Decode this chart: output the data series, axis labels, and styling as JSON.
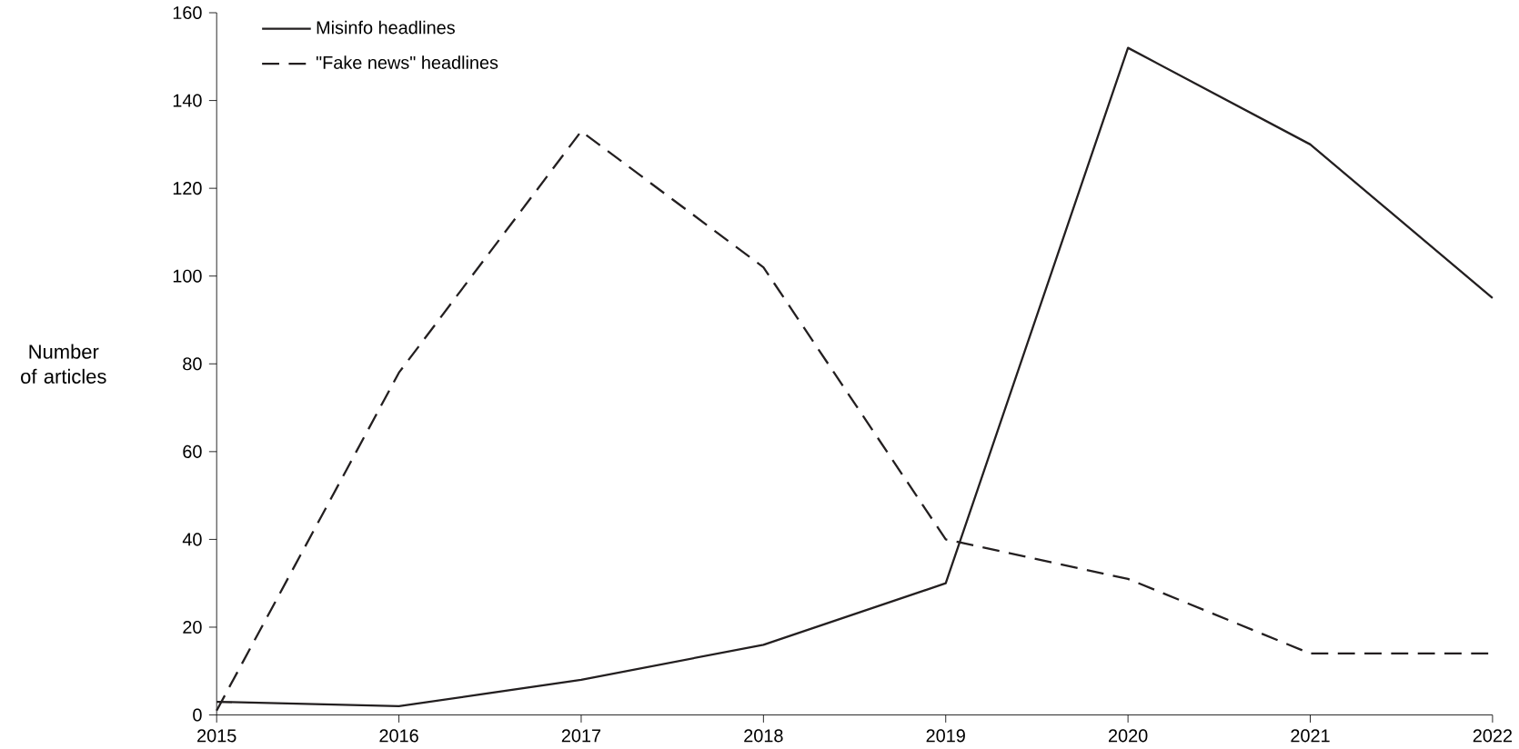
{
  "chart_data": {
    "type": "line",
    "ylabel": "Number of articles",
    "x": [
      2015,
      2016,
      2017,
      2018,
      2019,
      2020,
      2021,
      2022
    ],
    "series": [
      {
        "name": "Misinfo headlines",
        "color": "#231f20",
        "line_style": "solid",
        "values": [
          3,
          2,
          8,
          16,
          30,
          152,
          130,
          95
        ]
      },
      {
        "name": "\"Fake news\" headlines",
        "color": "#231f20",
        "line_style": "dashed",
        "values": [
          1,
          78,
          133,
          102,
          40,
          31,
          14,
          14
        ]
      }
    ],
    "xlim": [
      2015,
      2022
    ],
    "ylim": [
      0,
      160
    ],
    "xticks": [
      2015,
      2016,
      2017,
      2018,
      2019,
      2020,
      2021,
      2022
    ],
    "yticks": [
      0,
      20,
      40,
      60,
      80,
      100,
      120,
      140,
      160
    ],
    "grid": false,
    "legend": "top left",
    "marker": "none"
  }
}
